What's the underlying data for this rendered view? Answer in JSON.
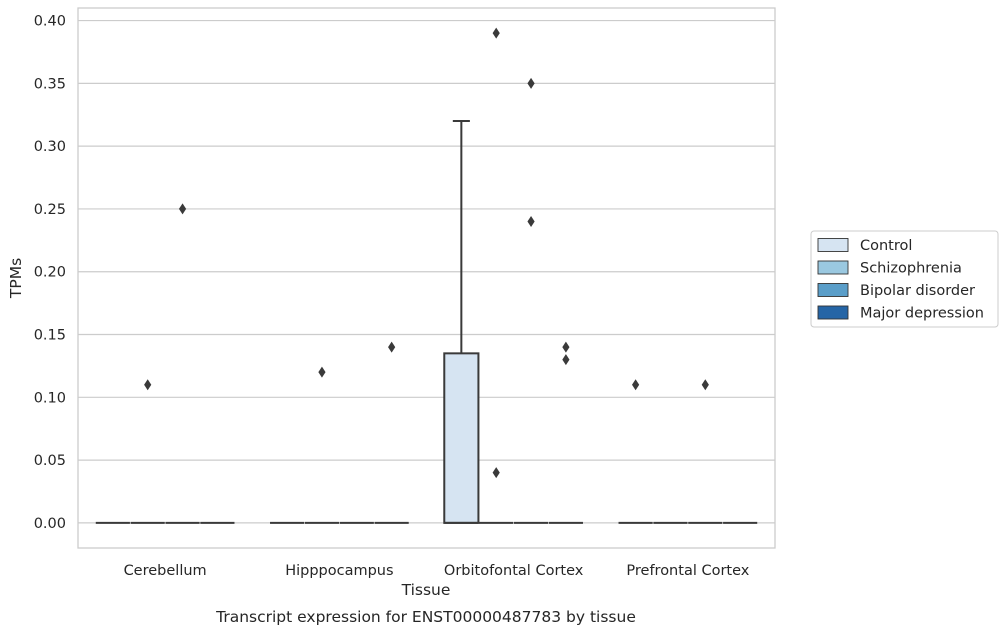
{
  "chart_data": {
    "type": "box",
    "xlabel": "Tissue",
    "ylabel": "TPMs",
    "caption": "Transcript expression for ENST00000487783 by tissue",
    "ylim": [
      -0.02,
      0.41
    ],
    "yticks": [
      "0.00",
      "0.05",
      "0.10",
      "0.15",
      "0.20",
      "0.25",
      "0.30",
      "0.35",
      "0.40"
    ],
    "grid": "horizontal",
    "legend_position": "right",
    "categories": [
      "Cerebellum",
      "Hipppocampus",
      "Orbitofontal Cortex",
      "Prefrontal Cortex"
    ],
    "series": [
      {
        "name": "Control",
        "color": "#d6e4f2",
        "boxes": [
          {
            "q1": 0,
            "median": 0,
            "q3": 0,
            "whisker_low": 0,
            "whisker_high": 0,
            "outliers": []
          },
          {
            "q1": 0,
            "median": 0,
            "q3": 0,
            "whisker_low": 0,
            "whisker_high": 0,
            "outliers": []
          },
          {
            "q1": 0,
            "median": 0,
            "q3": 0.135,
            "whisker_low": 0,
            "whisker_high": 0.32,
            "outliers": []
          },
          {
            "q1": 0,
            "median": 0,
            "q3": 0,
            "whisker_low": 0,
            "whisker_high": 0,
            "outliers": [
              0.11
            ]
          }
        ]
      },
      {
        "name": "Schizophrenia",
        "color": "#9ac8e0",
        "boxes": [
          {
            "q1": 0,
            "median": 0,
            "q3": 0,
            "whisker_low": 0,
            "whisker_high": 0,
            "outliers": [
              0.11
            ]
          },
          {
            "q1": 0,
            "median": 0,
            "q3": 0,
            "whisker_low": 0,
            "whisker_high": 0,
            "outliers": [
              0.12
            ]
          },
          {
            "q1": 0,
            "median": 0,
            "q3": 0,
            "whisker_low": 0,
            "whisker_high": 0,
            "outliers": [
              0.39,
              0.04
            ]
          },
          {
            "q1": 0,
            "median": 0,
            "q3": 0,
            "whisker_low": 0,
            "whisker_high": 0,
            "outliers": []
          }
        ]
      },
      {
        "name": "Bipolar disorder",
        "color": "#5a9ec9",
        "boxes": [
          {
            "q1": 0,
            "median": 0,
            "q3": 0,
            "whisker_low": 0,
            "whisker_high": 0,
            "outliers": [
              0.25
            ]
          },
          {
            "q1": 0,
            "median": 0,
            "q3": 0,
            "whisker_low": 0,
            "whisker_high": 0,
            "outliers": []
          },
          {
            "q1": 0,
            "median": 0,
            "q3": 0,
            "whisker_low": 0,
            "whisker_high": 0,
            "outliers": [
              0.35,
              0.24
            ]
          },
          {
            "q1": 0,
            "median": 0,
            "q3": 0,
            "whisker_low": 0,
            "whisker_high": 0,
            "outliers": [
              0.11
            ]
          }
        ]
      },
      {
        "name": "Major depression",
        "color": "#2565a6",
        "boxes": [
          {
            "q1": 0,
            "median": 0,
            "q3": 0,
            "whisker_low": 0,
            "whisker_high": 0,
            "outliers": []
          },
          {
            "q1": 0,
            "median": 0,
            "q3": 0,
            "whisker_low": 0,
            "whisker_high": 0,
            "outliers": [
              0.14
            ]
          },
          {
            "q1": 0,
            "median": 0,
            "q3": 0,
            "whisker_low": 0,
            "whisker_high": 0,
            "outliers": [
              0.14,
              0.13
            ]
          },
          {
            "q1": 0,
            "median": 0,
            "q3": 0,
            "whisker_low": 0,
            "whisker_high": 0,
            "outliers": []
          }
        ]
      }
    ]
  }
}
